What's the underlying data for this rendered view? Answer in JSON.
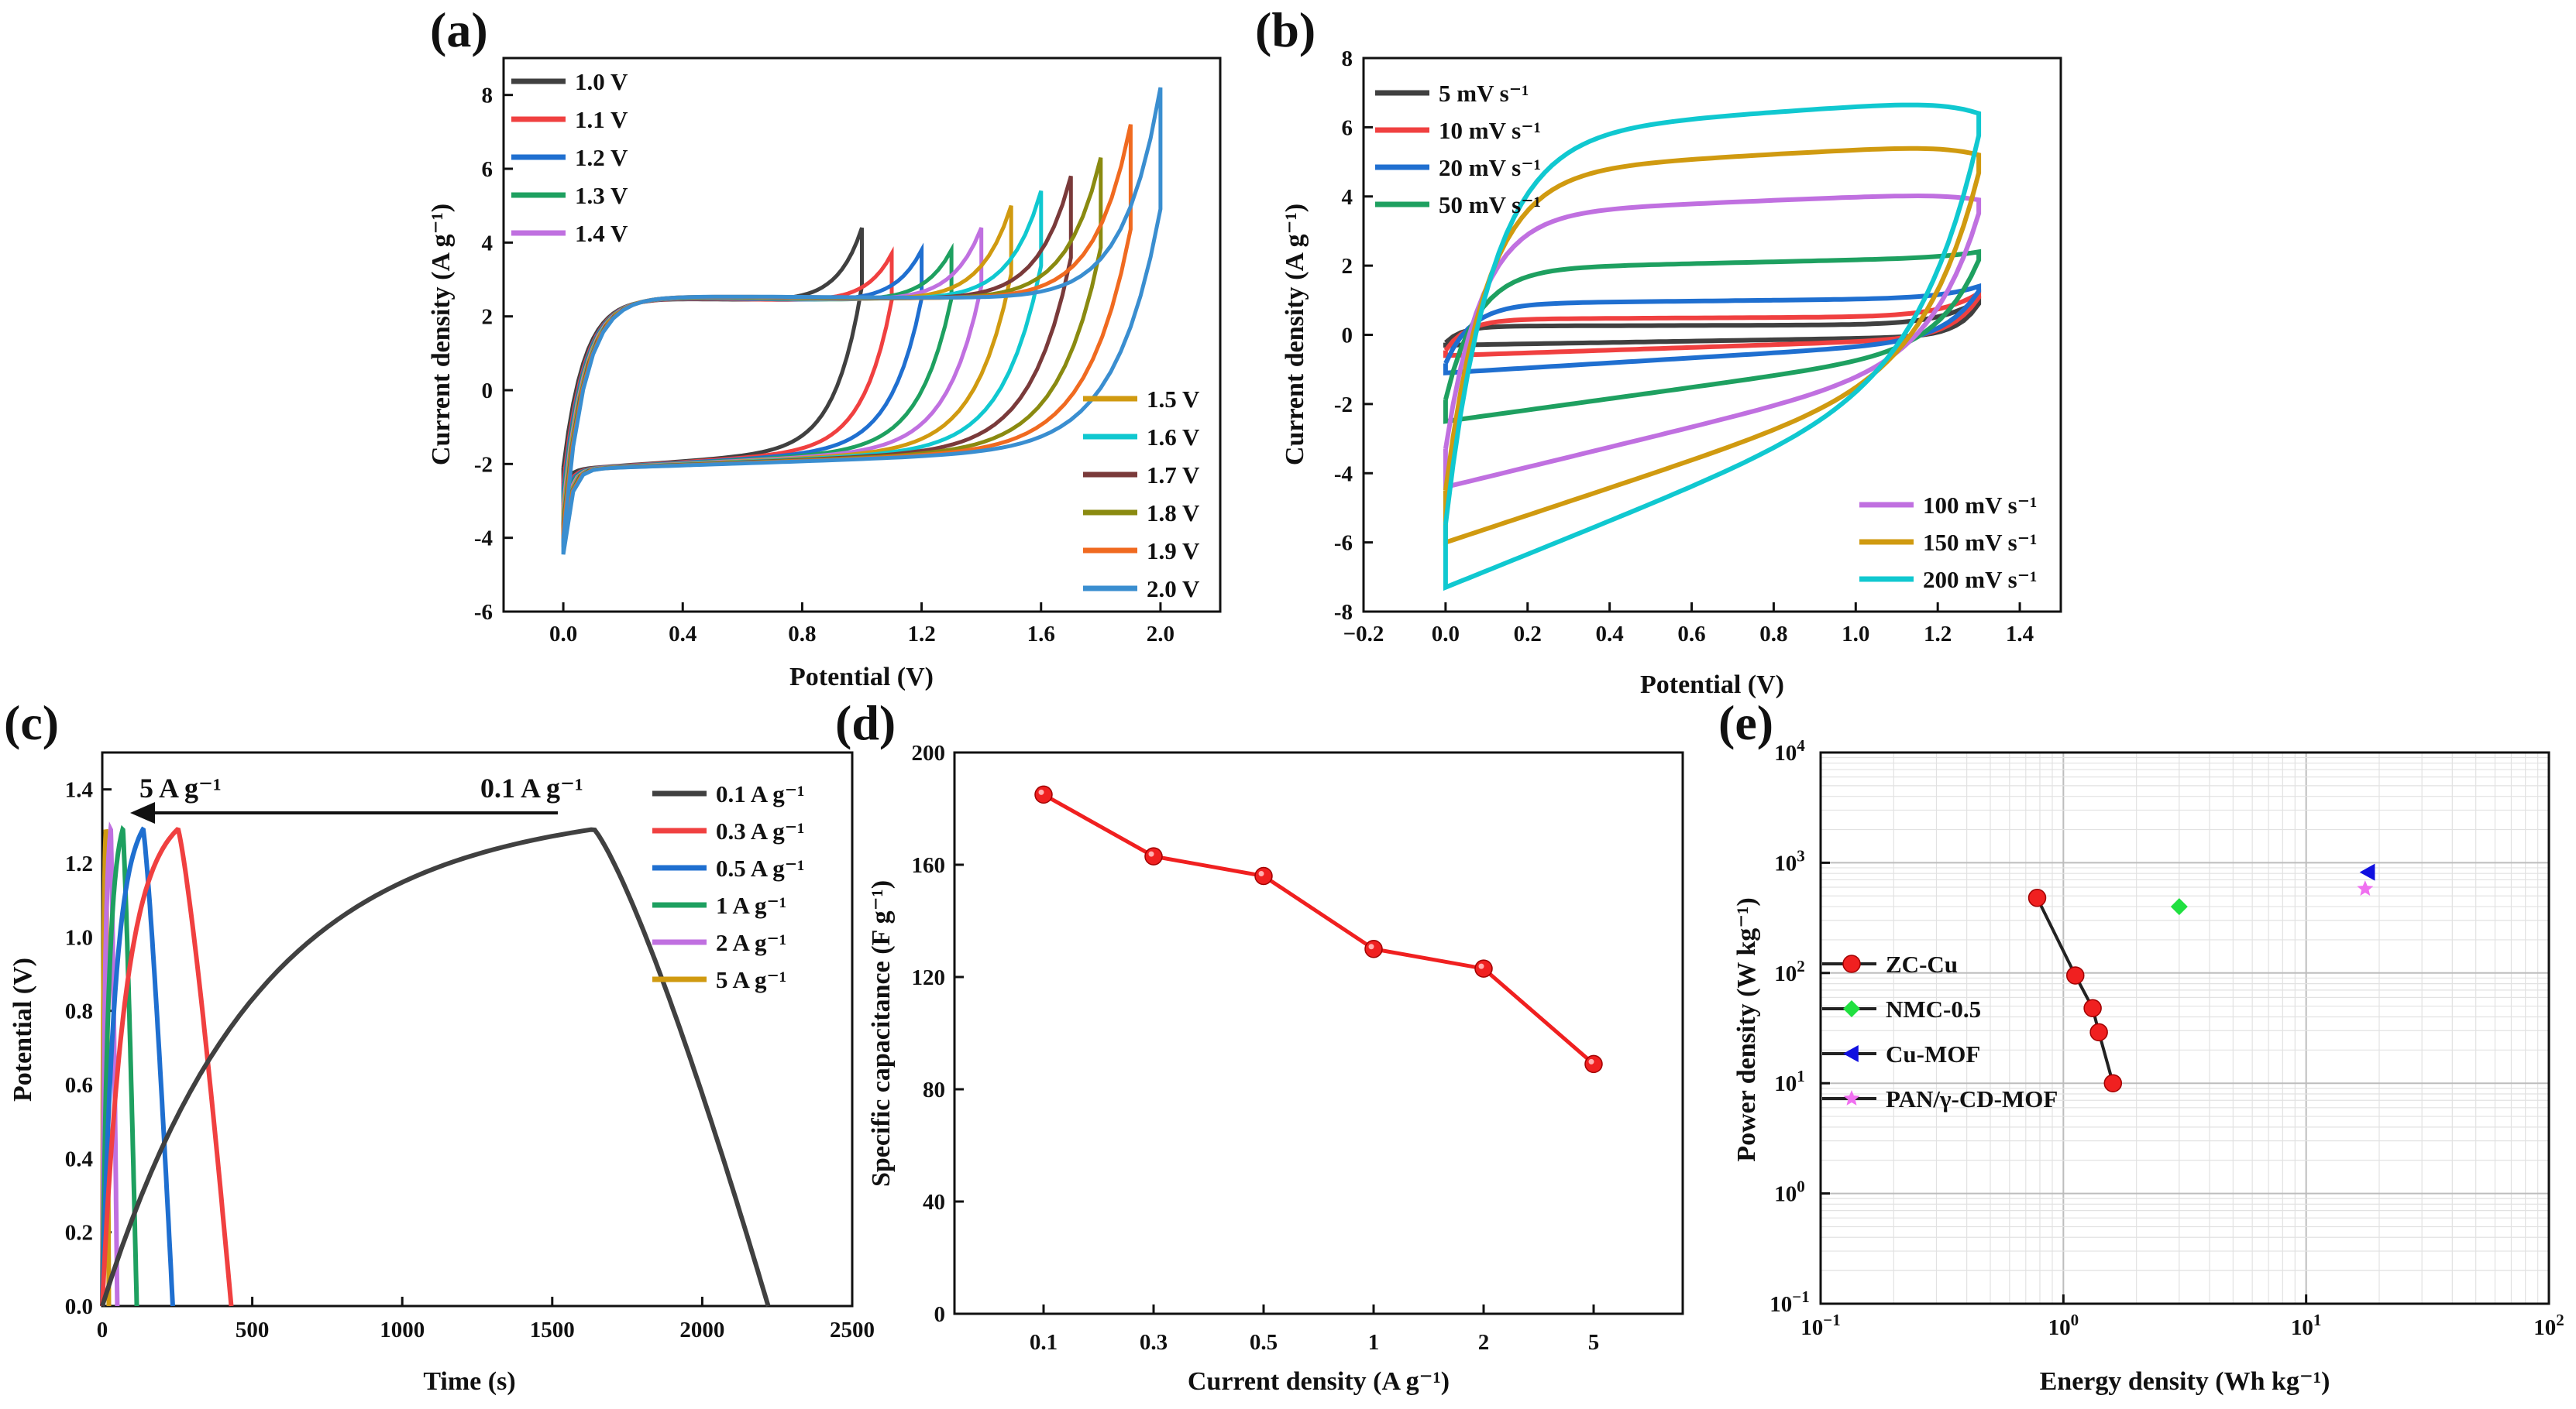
{
  "chart_data": [
    {
      "panel": "(a)",
      "type": "line",
      "title": "",
      "xlabel": "Potential (V)",
      "ylabel": "Current density (A g⁻¹)",
      "xlim": [
        -0.2,
        2.2
      ],
      "ylim": [
        -6,
        9
      ],
      "xticks": [
        "0.0",
        "0.4",
        "0.8",
        "1.2",
        "1.6",
        "2.0"
      ],
      "yticks": [
        "-6",
        "-4",
        "-2",
        "0",
        "2",
        "4",
        "6",
        "8"
      ],
      "series": [
        {
          "name": "1.0 V",
          "vmax": 1.0,
          "color": "#404040",
          "ipeak": 4.4,
          "imin": -2.5
        },
        {
          "name": "1.1 V",
          "vmax": 1.1,
          "color": "#f04040",
          "ipeak": 3.7,
          "imin": -2.9
        },
        {
          "name": "1.2 V",
          "vmax": 1.2,
          "color": "#1f6fd0",
          "ipeak": 3.8,
          "imin": -3.1
        },
        {
          "name": "1.3 V",
          "vmax": 1.3,
          "color": "#1ea060",
          "ipeak": 3.8,
          "imin": -3.3
        },
        {
          "name": "1.4 V",
          "vmax": 1.4,
          "color": "#c070e0",
          "ipeak": 4.4,
          "imin": -3.5
        },
        {
          "name": "1.5 V",
          "vmax": 1.5,
          "color": "#d09a10",
          "ipeak": 5.0,
          "imin": -3.7
        },
        {
          "name": "1.6 V",
          "vmax": 1.6,
          "color": "#10c8d0",
          "ipeak": 5.4,
          "imin": -3.9
        },
        {
          "name": "1.7 V",
          "vmax": 1.7,
          "color": "#7a3a3a",
          "ipeak": 5.8,
          "imin": -4.0
        },
        {
          "name": "1.8 V",
          "vmax": 1.8,
          "color": "#8a8a10",
          "ipeak": 6.3,
          "imin": -4.1
        },
        {
          "name": "1.9 V",
          "vmax": 1.9,
          "color": "#f06a20",
          "ipeak": 7.2,
          "imin": -4.2
        },
        {
          "name": "2.0 V",
          "vmax": 2.0,
          "color": "#3a8ed0",
          "ipeak": 8.2,
          "imin": -4.4
        }
      ]
    },
    {
      "panel": "(b)",
      "type": "line",
      "title": "",
      "xlabel": "Potential (V)",
      "ylabel": "Current density (A g⁻¹)",
      "xlim": [
        -0.2,
        1.5
      ],
      "ylim": [
        -8,
        8
      ],
      "xticks": [
        "−0.2",
        "0.0",
        "0.2",
        "0.4",
        "0.6",
        "0.8",
        "1.0",
        "1.2",
        "1.4"
      ],
      "yticks": [
        "-8",
        "-6",
        "-4",
        "-2",
        "0",
        "2",
        "4",
        "6",
        "8"
      ],
      "series": [
        {
          "name": "5 mV s⁻¹",
          "color": "#404040",
          "top": 0.25,
          "bottom": -0.3,
          "iend": 1.0
        },
        {
          "name": "10 mV s⁻¹",
          "color": "#f04040",
          "top": 0.45,
          "bottom": -0.6,
          "iend": 1.2
        },
        {
          "name": "20 mV s⁻¹",
          "color": "#1f6fd0",
          "top": 0.9,
          "bottom": -1.1,
          "iend": 1.4
        },
        {
          "name": "50 mV s⁻¹",
          "color": "#1ea060",
          "top": 1.9,
          "bottom": -2.5,
          "iend": 2.4
        },
        {
          "name": "100 mV s⁻¹",
          "color": "#c070e0",
          "top": 3.5,
          "bottom": -4.4,
          "iend": 3.9
        },
        {
          "name": "150 mV s⁻¹",
          "color": "#d09a10",
          "top": 4.7,
          "bottom": -6.0,
          "iend": 5.2
        },
        {
          "name": "200 mV s⁻¹",
          "color": "#10c8d0",
          "top": 5.8,
          "bottom": -7.3,
          "iend": 6.4
        }
      ]
    },
    {
      "panel": "(c)",
      "type": "line",
      "title": "",
      "xlabel": "Time (s)",
      "ylabel": "Potential (V)",
      "xlim": [
        0,
        2500
      ],
      "ylim": [
        0,
        1.5
      ],
      "xticks": [
        "0",
        "500",
        "1000",
        "1500",
        "2000",
        "2500"
      ],
      "yticks": [
        "0.0",
        "0.2",
        "0.4",
        "0.6",
        "0.8",
        "1.0",
        "1.2",
        "1.4"
      ],
      "annotations": {
        "high": "0.1 A g⁻¹",
        "low": "5 A g⁻¹"
      },
      "series": [
        {
          "name": "0.1 A g⁻¹",
          "color": "#404040",
          "t_charge": 1630,
          "t_end": 2220
        },
        {
          "name": "0.3 A g⁻¹",
          "color": "#f04040",
          "t_charge": 250,
          "t_end": 430
        },
        {
          "name": "0.5 A g⁻¹",
          "color": "#1f6fd0",
          "t_charge": 135,
          "t_end": 235
        },
        {
          "name": "1 A g⁻¹",
          "color": "#1ea060",
          "t_charge": 68,
          "t_end": 115
        },
        {
          "name": "2 A g⁻¹",
          "color": "#c070e0",
          "t_charge": 28,
          "t_end": 50
        },
        {
          "name": "5 A g⁻¹",
          "color": "#d09a10",
          "t_charge": 12,
          "t_end": 22
        }
      ]
    },
    {
      "panel": "(d)",
      "type": "line",
      "title": "",
      "xlabel": "Current density (A g⁻¹)",
      "ylabel": "Specific capacitance (F g⁻¹)",
      "categories": [
        "0.1",
        "0.3",
        "0.5",
        "1",
        "2",
        "5"
      ],
      "values": [
        185,
        163,
        156,
        130,
        123,
        89
      ],
      "ylim": [
        0,
        200
      ],
      "yticks": [
        "0",
        "40",
        "80",
        "120",
        "160",
        "200"
      ],
      "color": "#f02020"
    },
    {
      "panel": "(e)",
      "type": "scatter",
      "title": "",
      "xlabel": "Energy density (Wh kg⁻¹)",
      "ylabel": "Power density (W kg⁻¹)",
      "xscale": "log",
      "yscale": "log",
      "xlim": [
        0.1,
        100
      ],
      "ylim": [
        0.1,
        10000
      ],
      "xticks": [
        {
          "base": "10",
          "exp": "−1"
        },
        {
          "base": "10",
          "exp": "0"
        },
        {
          "base": "10",
          "exp": "1"
        },
        {
          "base": "10",
          "exp": "2"
        }
      ],
      "yticks": [
        {
          "base": "10",
          "exp": "−1"
        },
        {
          "base": "10",
          "exp": "0"
        },
        {
          "base": "10",
          "exp": "1"
        },
        {
          "base": "10",
          "exp": "2"
        },
        {
          "base": "10",
          "exp": "3"
        },
        {
          "base": "10",
          "exp": "4"
        }
      ],
      "series": [
        {
          "name": "ZC-Cu",
          "marker": "circle",
          "color": "#f02020",
          "points": [
            [
              0.78,
              480
            ],
            [
              1.12,
              95
            ],
            [
              1.32,
              48
            ],
            [
              1.4,
              29
            ],
            [
              1.6,
              10
            ]
          ]
        },
        {
          "name": "NMC-0.5",
          "marker": "diamond",
          "color": "#20e040",
          "points": [
            [
              3.0,
              400
            ]
          ]
        },
        {
          "name": "Cu-MOF",
          "marker": "triangle",
          "color": "#1010e0",
          "points": [
            [
              18,
              820
            ]
          ]
        },
        {
          "name": "PAN/γ-CD-MOF",
          "marker": "star",
          "color": "#f070f0",
          "points": [
            [
              17.5,
              580
            ]
          ]
        }
      ]
    }
  ]
}
